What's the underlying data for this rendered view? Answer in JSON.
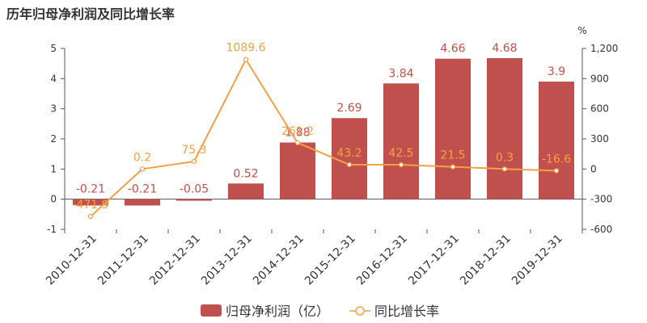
{
  "title": "历年归母净利润及同比增长率",
  "colors": {
    "bar": "#c0504d",
    "line": "#f4a144",
    "axis": "#555555",
    "text": "#333333"
  },
  "chart_data": {
    "type": "bar",
    "title": "历年归母净利润及同比增长率",
    "categories": [
      "2010-12-31",
      "2011-12-31",
      "2012-12-31",
      "2013-12-31",
      "2014-12-31",
      "2015-12-31",
      "2016-12-31",
      "2017-12-31",
      "2018-12-31",
      "2019-12-31"
    ],
    "series": [
      {
        "name": "归母净利润（亿）",
        "type": "bar",
        "axis": "left",
        "values": [
          -0.21,
          -0.21,
          -0.05,
          0.52,
          1.88,
          2.69,
          3.84,
          4.66,
          4.68,
          3.9
        ],
        "labels": [
          "-0.21",
          "-0.21",
          "-0.05",
          "0.52",
          "1.88",
          "2.69",
          "3.84",
          "4.66",
          "4.68",
          "3.9"
        ]
      },
      {
        "name": "同比增长率",
        "type": "line",
        "axis": "right",
        "values": [
          -471.9,
          0.2,
          75.3,
          1089.6,
          261.2,
          43.2,
          42.5,
          21.5,
          0.3,
          -16.6
        ],
        "labels": [
          "-471.9",
          "0.2",
          "75.3",
          "1089.6",
          "261.2",
          "43.2",
          "42.5",
          "21.5",
          "0.3",
          "-16.6"
        ]
      }
    ],
    "y_left": {
      "range": [
        -1,
        5
      ],
      "ticks": [
        "-1",
        "0",
        "1",
        "2",
        "3",
        "4",
        "5"
      ]
    },
    "y_right": {
      "range": [
        -600,
        1200
      ],
      "unit": "%",
      "ticks": [
        "-600",
        "-300",
        "0",
        "300",
        "600",
        "900",
        "1,200"
      ]
    },
    "grid": false,
    "legend": "bottom-center"
  }
}
